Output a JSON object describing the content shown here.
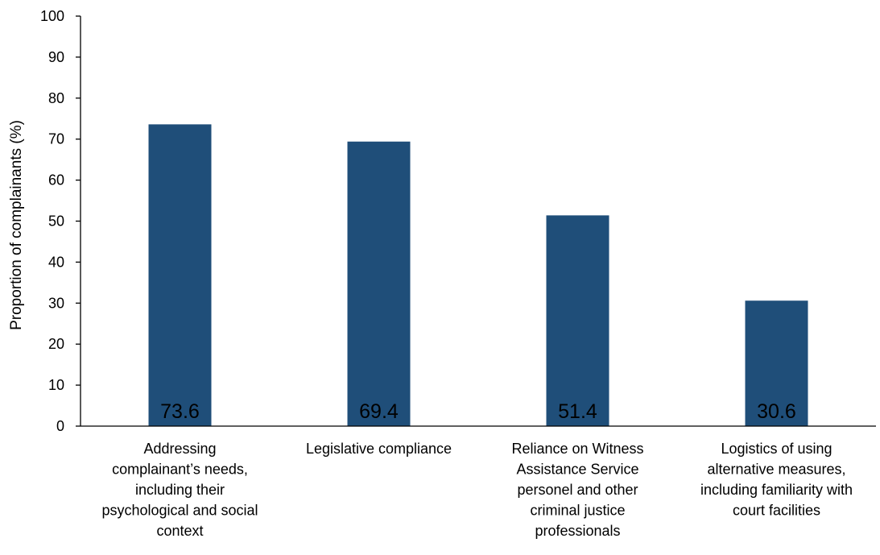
{
  "chart_data": {
    "type": "bar",
    "title": "",
    "xlabel": "",
    "ylabel": "Proportion of complainants (%)",
    "ylim": [
      0,
      100
    ],
    "yticks": [
      0,
      10,
      20,
      30,
      40,
      50,
      60,
      70,
      80,
      90,
      100
    ],
    "grid": false,
    "legend": "none",
    "bar_color": "#1f4e79",
    "categories": [
      [
        "Addressing",
        "complainant’s needs,",
        "including their",
        "psychological and social",
        "context"
      ],
      [
        "Legislative compliance"
      ],
      [
        "Reliance on Witness",
        "Assistance Service",
        "personel and other",
        "criminal justice",
        "professionals"
      ],
      [
        "Logistics of using",
        "alternative measures,",
        "including familiarity with",
        "court facilities"
      ]
    ],
    "values": [
      73.6,
      69.4,
      51.4,
      30.6
    ],
    "data_labels": [
      "73.6",
      "69.4",
      "51.4",
      "30.6"
    ]
  }
}
